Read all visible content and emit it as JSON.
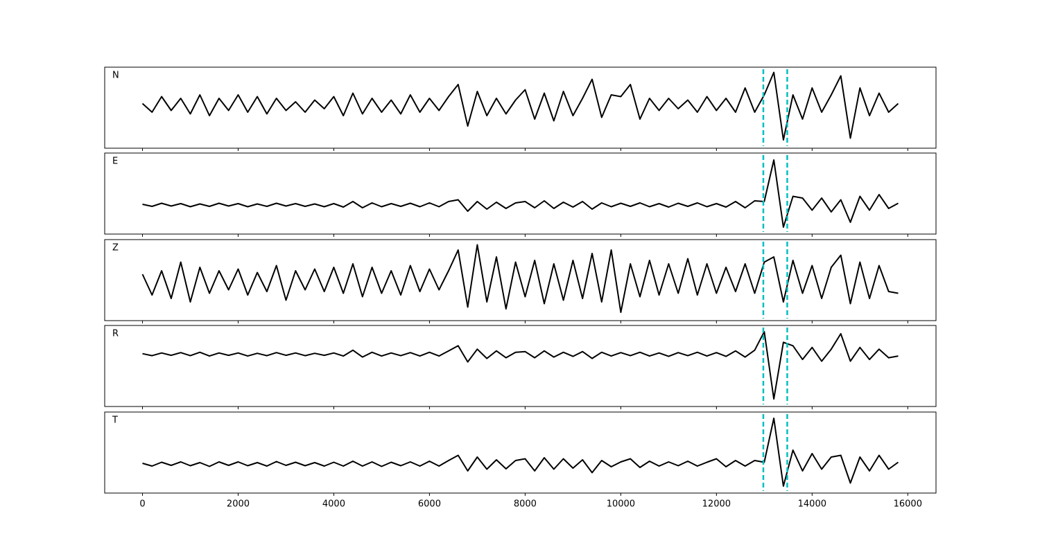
{
  "chart_data": [
    {
      "type": "line",
      "label": "N",
      "color": "#000000",
      "xlim": [
        -790,
        16590
      ],
      "ylim": [
        -1.24,
        1.1
      ],
      "xticks": [
        0,
        2000,
        4000,
        6000,
        8000,
        10000,
        12000,
        14000,
        16000
      ],
      "xtick_labels": false,
      "vlines": [
        12980,
        13480
      ],
      "vline_color": "#00bfbf",
      "x": [
        0,
        200,
        400,
        600,
        800,
        1000,
        1200,
        1400,
        1600,
        1800,
        2000,
        2200,
        2400,
        2600,
        2800,
        3000,
        3200,
        3400,
        3600,
        3800,
        4000,
        4200,
        4400,
        4600,
        4800,
        5000,
        5200,
        5400,
        5600,
        5800,
        6000,
        6200,
        6400,
        6600,
        6800,
        7000,
        7200,
        7400,
        7600,
        7800,
        8000,
        8200,
        8400,
        8600,
        8800,
        9000,
        9200,
        9400,
        9600,
        9800,
        10000,
        10200,
        10400,
        10600,
        10800,
        11000,
        11200,
        11400,
        11600,
        11800,
        12000,
        12200,
        12400,
        12600,
        12800,
        13000,
        13200,
        13400,
        13600,
        13800,
        14000,
        14200,
        14400,
        14600,
        14800,
        15000,
        15200,
        15400,
        15600,
        15800
      ],
      "values": [
        0.05,
        -0.2,
        0.25,
        -0.15,
        0.2,
        -0.25,
        0.3,
        -0.3,
        0.2,
        -0.15,
        0.3,
        -0.2,
        0.25,
        -0.25,
        0.2,
        -0.15,
        0.1,
        -0.2,
        0.15,
        -0.1,
        0.25,
        -0.3,
        0.35,
        -0.25,
        0.2,
        -0.2,
        0.15,
        -0.25,
        0.3,
        -0.2,
        0.2,
        -0.15,
        0.25,
        0.6,
        -0.6,
        0.4,
        -0.3,
        0.2,
        -0.25,
        0.15,
        0.45,
        -0.4,
        0.35,
        -0.45,
        0.4,
        -0.3,
        0.2,
        0.75,
        -0.35,
        0.3,
        0.25,
        0.6,
        -0.4,
        0.2,
        -0.15,
        0.2,
        -0.1,
        0.15,
        -0.2,
        0.25,
        -0.15,
        0.2,
        -0.2,
        0.5,
        -0.2,
        0.3,
        0.95,
        -1.0,
        0.3,
        -0.4,
        0.5,
        -0.2,
        0.3,
        0.85,
        -0.95,
        0.5,
        -0.3,
        0.35,
        -0.2,
        0.05
      ]
    },
    {
      "type": "line",
      "label": "E",
      "color": "#000000",
      "xlim": [
        -790,
        16590
      ],
      "ylim": [
        -0.84,
        1.5
      ],
      "xticks": [
        0,
        2000,
        4000,
        6000,
        8000,
        10000,
        12000,
        14000,
        16000
      ],
      "xtick_labels": false,
      "vlines": [
        12980,
        13480
      ],
      "vline_color": "#00bfbf",
      "x": [
        0,
        200,
        400,
        600,
        800,
        1000,
        1200,
        1400,
        1600,
        1800,
        2000,
        2200,
        2400,
        2600,
        2800,
        3000,
        3200,
        3400,
        3600,
        3800,
        4000,
        4200,
        4400,
        4600,
        4800,
        5000,
        5200,
        5400,
        5600,
        5800,
        6000,
        6200,
        6400,
        6600,
        6800,
        7000,
        7200,
        7400,
        7600,
        7800,
        8000,
        8200,
        8400,
        8600,
        8800,
        9000,
        9200,
        9400,
        9600,
        9800,
        10000,
        10200,
        10400,
        10600,
        10800,
        11000,
        11200,
        11400,
        11600,
        11800,
        12000,
        12200,
        12400,
        12600,
        12800,
        13000,
        13200,
        13400,
        13600,
        13800,
        14000,
        14200,
        14400,
        14600,
        14800,
        15000,
        15200,
        15400,
        15600,
        15800
      ],
      "values": [
        0.02,
        -0.04,
        0.05,
        -0.03,
        0.04,
        -0.05,
        0.03,
        -0.04,
        0.05,
        -0.03,
        0.04,
        -0.05,
        0.03,
        -0.04,
        0.05,
        -0.03,
        0.04,
        -0.04,
        0.03,
        -0.05,
        0.04,
        -0.06,
        0.1,
        -0.08,
        0.06,
        -0.05,
        0.04,
        -0.04,
        0.05,
        -0.05,
        0.06,
        -0.05,
        0.1,
        0.15,
        -0.18,
        0.1,
        -0.12,
        0.08,
        -0.1,
        0.06,
        0.1,
        -0.08,
        0.12,
        -0.1,
        0.08,
        -0.06,
        0.1,
        -0.12,
        0.06,
        -0.05,
        0.05,
        -0.04,
        0.06,
        -0.05,
        0.04,
        -0.06,
        0.05,
        -0.04,
        0.06,
        -0.05,
        0.04,
        -0.06,
        0.1,
        -0.08,
        0.12,
        0.1,
        1.3,
        -0.64,
        0.25,
        0.2,
        -0.15,
        0.2,
        -0.2,
        0.15,
        -0.5,
        0.25,
        -0.15,
        0.3,
        -0.1,
        0.05
      ]
    },
    {
      "type": "line",
      "label": "Z",
      "color": "#000000",
      "xlim": [
        -790,
        16590
      ],
      "ylim": [
        -1.14,
        1.2
      ],
      "xticks": [
        0,
        2000,
        4000,
        6000,
        8000,
        10000,
        12000,
        14000,
        16000
      ],
      "xtick_labels": false,
      "vlines": [
        12980,
        13480
      ],
      "vline_color": "#00bfbf",
      "x": [
        0,
        200,
        400,
        600,
        800,
        1000,
        1200,
        1400,
        1600,
        1800,
        2000,
        2200,
        2400,
        2600,
        2800,
        3000,
        3200,
        3400,
        3600,
        3800,
        4000,
        4200,
        4400,
        4600,
        4800,
        5000,
        5200,
        5400,
        5600,
        5800,
        6000,
        6200,
        6400,
        6600,
        6800,
        7000,
        7200,
        7400,
        7600,
        7800,
        8000,
        8200,
        8400,
        8600,
        8800,
        9000,
        9200,
        9400,
        9600,
        9800,
        10000,
        10200,
        10400,
        10600,
        10800,
        11000,
        11200,
        11400,
        11600,
        11800,
        12000,
        12200,
        12400,
        12600,
        12800,
        13000,
        13200,
        13400,
        13600,
        13800,
        14000,
        14200,
        14400,
        14600,
        14800,
        15000,
        15200,
        15400,
        15600,
        15800
      ],
      "values": [
        0.2,
        -0.4,
        0.3,
        -0.5,
        0.55,
        -0.6,
        0.4,
        -0.35,
        0.3,
        -0.25,
        0.35,
        -0.4,
        0.25,
        -0.3,
        0.45,
        -0.55,
        0.3,
        -0.25,
        0.35,
        -0.3,
        0.4,
        -0.35,
        0.5,
        -0.45,
        0.4,
        -0.35,
        0.3,
        -0.4,
        0.45,
        -0.3,
        0.35,
        -0.25,
        0.3,
        0.9,
        -0.75,
        1.05,
        -0.6,
        0.7,
        -0.8,
        0.55,
        -0.45,
        0.6,
        -0.65,
        0.5,
        -0.55,
        0.6,
        -0.5,
        0.8,
        -0.6,
        0.9,
        -0.9,
        0.5,
        -0.45,
        0.6,
        -0.4,
        0.5,
        -0.35,
        0.65,
        -0.4,
        0.5,
        -0.35,
        0.4,
        -0.3,
        0.5,
        -0.35,
        0.55,
        0.7,
        -0.6,
        0.6,
        -0.35,
        0.45,
        -0.5,
        0.4,
        0.75,
        -0.65,
        0.55,
        -0.5,
        0.45,
        -0.3,
        -0.35
      ]
    },
    {
      "type": "line",
      "label": "R",
      "color": "#000000",
      "xlim": [
        -790,
        16590
      ],
      "ylim": [
        -1.52,
        0.84
      ],
      "xticks": [
        0,
        2000,
        4000,
        6000,
        8000,
        10000,
        12000,
        14000,
        16000
      ],
      "xtick_labels": false,
      "vlines": [
        12980,
        13480
      ],
      "vline_color": "#00bfbf",
      "x": [
        0,
        200,
        400,
        600,
        800,
        1000,
        1200,
        1400,
        1600,
        1800,
        2000,
        2200,
        2400,
        2600,
        2800,
        3000,
        3200,
        3400,
        3600,
        3800,
        4000,
        4200,
        4400,
        4600,
        4800,
        5000,
        5200,
        5400,
        5600,
        5800,
        6000,
        6200,
        6400,
        6600,
        6800,
        7000,
        7200,
        7400,
        7600,
        7800,
        8000,
        8200,
        8400,
        8600,
        8800,
        9000,
        9200,
        9400,
        9600,
        9800,
        10000,
        10200,
        10400,
        10600,
        10800,
        11000,
        11200,
        11400,
        11600,
        11800,
        12000,
        12200,
        12400,
        12600,
        12800,
        13000,
        13200,
        13400,
        13600,
        13800,
        14000,
        14200,
        14400,
        14600,
        14800,
        15000,
        15200,
        15400,
        15600,
        15800
      ],
      "values": [
        0.02,
        -0.04,
        0.04,
        -0.03,
        0.05,
        -0.04,
        0.06,
        -0.05,
        0.04,
        -0.03,
        0.04,
        -0.05,
        0.03,
        -0.04,
        0.05,
        -0.03,
        0.04,
        -0.04,
        0.03,
        -0.03,
        0.04,
        -0.05,
        0.12,
        -0.08,
        0.06,
        -0.05,
        0.04,
        -0.04,
        0.05,
        -0.05,
        0.06,
        -0.05,
        0.1,
        0.25,
        -0.22,
        0.15,
        -0.12,
        0.1,
        -0.1,
        0.06,
        0.08,
        -0.1,
        0.1,
        -0.08,
        0.06,
        -0.06,
        0.08,
        -0.12,
        0.06,
        -0.05,
        0.05,
        -0.04,
        0.06,
        -0.05,
        0.04,
        -0.06,
        0.05,
        -0.04,
        0.06,
        -0.05,
        0.05,
        -0.06,
        0.1,
        -0.08,
        0.12,
        0.66,
        -1.3,
        0.35,
        0.25,
        -0.15,
        0.2,
        -0.2,
        0.15,
        0.6,
        -0.2,
        0.2,
        -0.15,
        0.15,
        -0.1,
        -0.05
      ]
    },
    {
      "type": "line",
      "label": "T",
      "color": "#000000",
      "xlim": [
        -790,
        16590
      ],
      "ylim": [
        -0.84,
        1.5
      ],
      "xticks": [
        0,
        2000,
        4000,
        6000,
        8000,
        10000,
        12000,
        14000,
        16000
      ],
      "xtick_labels": true,
      "vlines": [
        12980,
        13480
      ],
      "vline_color": "#00bfbf",
      "x": [
        0,
        200,
        400,
        600,
        800,
        1000,
        1200,
        1400,
        1600,
        1800,
        2000,
        2200,
        2400,
        2600,
        2800,
        3000,
        3200,
        3400,
        3600,
        3800,
        4000,
        4200,
        4400,
        4600,
        4800,
        5000,
        5200,
        5400,
        5600,
        5800,
        6000,
        6200,
        6400,
        6600,
        6800,
        7000,
        7200,
        7400,
        7600,
        7800,
        8000,
        8200,
        8400,
        8600,
        8800,
        9000,
        9200,
        9400,
        9600,
        9800,
        10000,
        10200,
        10400,
        10600,
        10800,
        11000,
        11200,
        11400,
        11600,
        11800,
        12000,
        12200,
        12400,
        12600,
        12800,
        13000,
        13200,
        13400,
        13600,
        13800,
        14000,
        14200,
        14400,
        14600,
        14800,
        15000,
        15200,
        15400,
        15600,
        15800
      ],
      "values": [
        0.02,
        -0.06,
        0.05,
        -0.04,
        0.06,
        -0.05,
        0.04,
        -0.07,
        0.06,
        -0.04,
        0.06,
        -0.05,
        0.04,
        -0.06,
        0.07,
        -0.04,
        0.05,
        -0.05,
        0.04,
        -0.06,
        0.05,
        -0.06,
        0.08,
        -0.06,
        0.06,
        -0.07,
        0.05,
        -0.05,
        0.06,
        -0.06,
        0.08,
        -0.06,
        0.1,
        0.25,
        -0.2,
        0.2,
        -0.15,
        0.12,
        -0.14,
        0.1,
        0.15,
        -0.2,
        0.18,
        -0.15,
        0.15,
        -0.12,
        0.12,
        -0.25,
        0.1,
        -0.08,
        0.06,
        0.15,
        -0.1,
        0.08,
        -0.06,
        0.06,
        -0.05,
        0.08,
        -0.06,
        0.05,
        0.15,
        -0.08,
        0.1,
        -0.06,
        0.1,
        0.05,
        1.32,
        -0.64,
        0.4,
        -0.2,
        0.3,
        -0.15,
        0.2,
        0.25,
        -0.55,
        0.2,
        -0.2,
        0.25,
        -0.15,
        0.05
      ]
    }
  ]
}
